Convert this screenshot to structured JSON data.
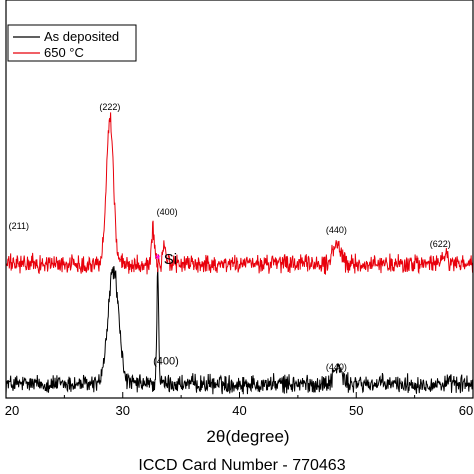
{
  "chart_data": {
    "type": "line",
    "xlabel": "2θ(degree)",
    "ylabel": "",
    "xlim": [
      20,
      60
    ],
    "x_ticks": [
      "20",
      "30",
      "40",
      "50",
      "60"
    ],
    "caption": "ICCD  Card Number - 770463",
    "legend": {
      "placement": "top-left"
    },
    "grid": false,
    "series": [
      {
        "name": "As deposited",
        "color": "#000000",
        "peaks": [
          {
            "x": 29.2,
            "height": 0.82,
            "width": 0.45
          },
          {
            "x": 33.0,
            "height": 0.82,
            "width": 0.08
          },
          {
            "x": 48.4,
            "height": 0.12,
            "width": 0.35
          }
        ],
        "noise": 0.1
      },
      {
        "name": "650 °C",
        "color": "#e8000b",
        "peaks": [
          {
            "x": 28.9,
            "height": 1.05,
            "width": 0.3
          },
          {
            "x": 32.6,
            "height": 0.25,
            "width": 0.12
          },
          {
            "x": 33.6,
            "height": 0.12,
            "width": 0.15
          },
          {
            "x": 48.3,
            "height": 0.15,
            "width": 0.3
          },
          {
            "x": 57.6,
            "height": 0.07,
            "width": 0.2
          }
        ],
        "noise": 0.1
      }
    ],
    "peak_labels": [
      {
        "text": "(211)",
        "series": "650 °C",
        "x": 21.1,
        "y": 0.25,
        "size": "small"
      },
      {
        "text": "(222)",
        "series": "650 °C",
        "x": 28.9,
        "y": 1.1,
        "size": "small"
      },
      {
        "text": "(400)",
        "series": "650 °C",
        "x": 33.8,
        "y": 0.35,
        "size": "small"
      },
      {
        "text": "(440)",
        "series": "650 °C",
        "x": 48.3,
        "y": 0.22,
        "size": "small"
      },
      {
        "text": "(622)",
        "series": "650 °C",
        "x": 57.2,
        "y": 0.12,
        "size": "small"
      },
      {
        "text": "(400)",
        "series": "As deposited",
        "x": 33.7,
        "y": 0.14,
        "size": "large"
      },
      {
        "text": "(440)",
        "series": "As deposited",
        "x": 48.3,
        "y": 0.1,
        "size": "small"
      }
    ],
    "marker_annotation": {
      "symbol": "*",
      "text": "Si",
      "x": 33.0,
      "series": "As deposited",
      "y": 0.9,
      "symbol_color": "#ff00ff"
    }
  }
}
